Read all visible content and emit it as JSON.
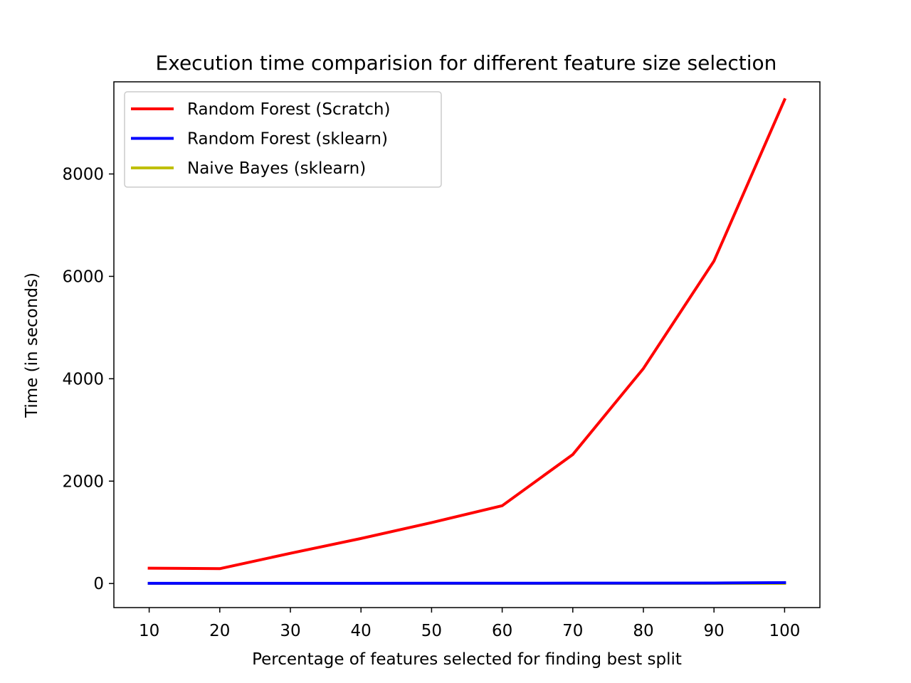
{
  "chart_data": {
    "type": "line",
    "title": "Execution time comparision for different feature size selection",
    "xlabel": "Percentage of features selected for finding best split",
    "ylabel": "Time (in seconds)",
    "x": [
      10,
      20,
      30,
      40,
      50,
      60,
      70,
      80,
      90,
      100
    ],
    "xlim": [
      5,
      105
    ],
    "ylim": [
      -470,
      9800
    ],
    "xticks": [
      10,
      20,
      30,
      40,
      50,
      60,
      70,
      80,
      90,
      100
    ],
    "yticks": [
      0,
      2000,
      4000,
      6000,
      8000
    ],
    "grid": false,
    "legend_position": "top-left",
    "series": [
      {
        "name": "Random Forest (Scratch)",
        "color": "#ff0000",
        "values": [
          300,
          290,
          590,
          880,
          1190,
          1520,
          2520,
          4200,
          6300,
          9450
        ]
      },
      {
        "name": "Random Forest (sklearn)",
        "color": "#0000ff",
        "values": [
          5,
          5,
          5,
          5,
          6,
          6,
          7,
          8,
          10,
          18
        ]
      },
      {
        "name": "Naive Bayes (sklearn)",
        "color": "#bfbf00",
        "values": [
          2,
          2,
          2,
          2,
          2,
          2,
          2,
          2,
          2,
          3
        ]
      }
    ]
  }
}
